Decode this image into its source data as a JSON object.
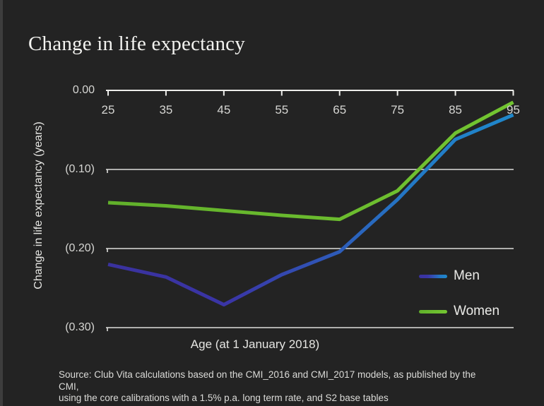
{
  "title": "Change in life expectancy",
  "colors": {
    "background": "#232323",
    "edge_strip": "#3d3d3d",
    "axis": "#ededea",
    "grid": "#dededb",
    "title_text": "#f3f3f0",
    "tick_text": "#d6d6d3",
    "men_line_start": "#3a329e",
    "men_line_end": "#1f88cb",
    "women_line": "#68b92d"
  },
  "chart_data": {
    "type": "line",
    "title": "Change in life expectancy",
    "xlabel": "Age (at 1 January 2018)",
    "ylabel": "Change in life expectancy (years)",
    "x": [
      25,
      35,
      45,
      55,
      65,
      75,
      85,
      95
    ],
    "x_tick_labels": [
      "25",
      "35",
      "45",
      "55",
      "65",
      "75",
      "85",
      "95"
    ],
    "xlim": [
      25,
      95
    ],
    "y_ticks": [
      0,
      -0.1,
      -0.2,
      -0.3
    ],
    "y_tick_labels": [
      "0.00",
      "(0.10)",
      "(0.20)",
      "(0.30)"
    ],
    "ylim": [
      -0.3,
      0
    ],
    "grid": "horizontal",
    "legend_position": "inside-bottom-right",
    "series": [
      {
        "name": "Men",
        "values": [
          -0.22,
          -0.236,
          -0.271,
          -0.233,
          -0.204,
          -0.138,
          -0.062,
          -0.031
        ],
        "gradient_stops": [
          [
            "0%",
            "#3a329e"
          ],
          [
            "30%",
            "#3a35a6"
          ],
          [
            "52%",
            "#3054b6"
          ],
          [
            "75%",
            "#2379c5"
          ],
          [
            "100%",
            "#1f88cb"
          ]
        ]
      },
      {
        "name": "Women",
        "values": [
          -0.142,
          -0.146,
          -0.152,
          -0.158,
          -0.163,
          -0.127,
          -0.054,
          -0.015
        ],
        "gradient_stops": [
          [
            "0%",
            "#61b02b"
          ],
          [
            "100%",
            "#73c531"
          ]
        ]
      }
    ]
  },
  "source": {
    "line1": "Source: Club Vita calculations based on the CMI_2016 and CMI_2017 models, as published by the CMI,",
    "line2": "using the core calibrations with a 1.5% p.a. long term rate, and S2 base tables"
  }
}
